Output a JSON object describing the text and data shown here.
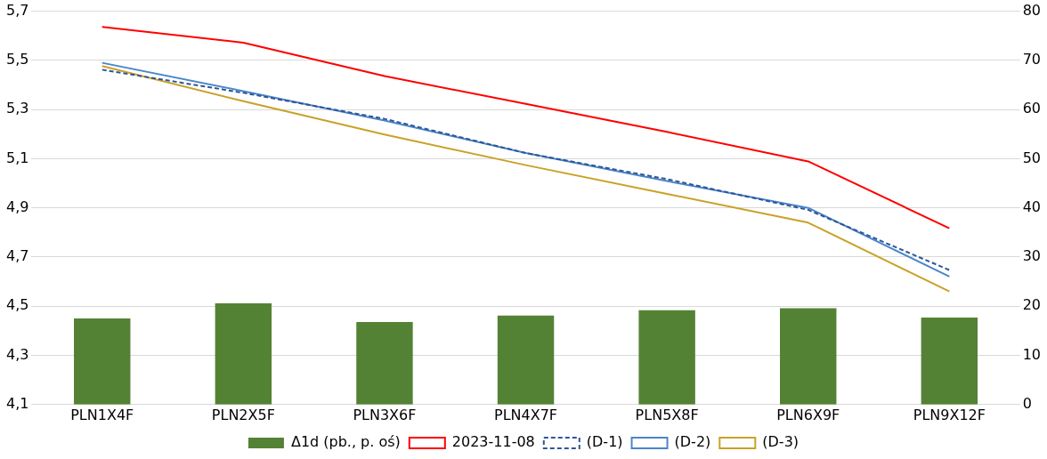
{
  "chart_data": {
    "type": "line",
    "categories": [
      "PLN1X4F",
      "PLN2X5F",
      "PLN3X6F",
      "PLN4X7F",
      "PLN5X8F",
      "PLN6X9F",
      "PLN9X12F"
    ],
    "series": [
      {
        "name": "Δ1d (pb., p. oś)",
        "type": "bar",
        "axis": "y2",
        "color": "#548235",
        "values": [
          17.5,
          20.6,
          16.8,
          18.1,
          19.2,
          19.6,
          17.7
        ]
      },
      {
        "name": "2023-11-08",
        "color": "#ff0000",
        "values": [
          5.636,
          5.572,
          5.436,
          5.323,
          5.209,
          5.089,
          4.817
        ]
      },
      {
        "name": "(D-1)",
        "color": "#2f5597",
        "line_style": "dashed",
        "values": [
          5.462,
          5.368,
          5.262,
          5.123,
          5.017,
          4.892,
          4.647
        ]
      },
      {
        "name": "(D-2)",
        "color": "#4a86c8",
        "values": [
          5.49,
          5.375,
          5.255,
          5.123,
          5.009,
          4.9,
          4.621
        ]
      },
      {
        "name": "(D-3)",
        "color": "#c9a227",
        "values": [
          5.477,
          5.334,
          5.198,
          5.074,
          4.957,
          4.84,
          4.56
        ]
      }
    ],
    "ylim": [
      4.1,
      5.7
    ],
    "yticks": [
      {
        "value": 4.1,
        "label": "4,1"
      },
      {
        "value": 4.3,
        "label": "4,3"
      },
      {
        "value": 4.5,
        "label": "4,5"
      },
      {
        "value": 4.7,
        "label": "4,7"
      },
      {
        "value": 4.9,
        "label": "4,9"
      },
      {
        "value": 5.1,
        "label": "5,1"
      },
      {
        "value": 5.3,
        "label": "5,3"
      },
      {
        "value": 5.5,
        "label": "5,5"
      },
      {
        "value": 5.7,
        "label": "5,7"
      }
    ],
    "y2lim": [
      0,
      80
    ],
    "y2ticks": [
      0,
      10,
      20,
      30,
      40,
      50,
      60,
      70,
      80
    ],
    "grid": "y",
    "legend": "bottom",
    "marker": "none"
  }
}
